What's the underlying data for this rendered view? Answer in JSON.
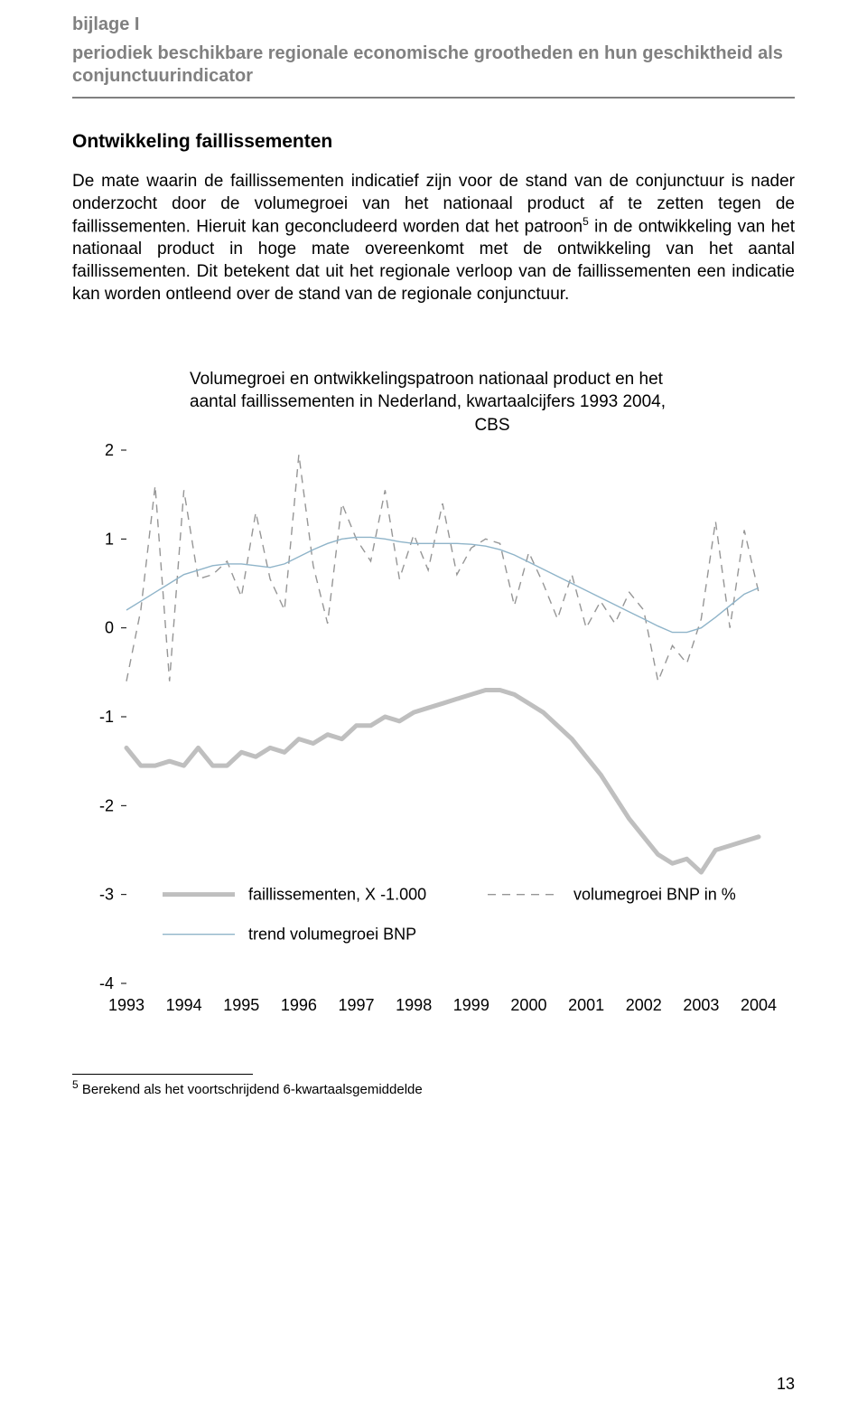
{
  "header": {
    "appendix_label": "bijlage I",
    "appendix_subtitle": "periodiek beschikbare regionale economische grootheden en hun geschiktheid als conjunctuurindicator"
  },
  "section": {
    "heading": "Ontwikkeling faillissementen",
    "paragraph_pre_sup": "De mate waarin de faillissementen indicatief zijn voor de stand van de conjunctuur is nader onderzocht door de volumegroei van het nationaal product af te zetten tegen de faillissementen. Hieruit kan geconcludeerd worden dat het patroon",
    "sup": "5",
    "paragraph_post_sup": " in de ontwikkeling van het nationaal product in hoge mate overeenkomt met de ontwikkeling van het aantal faillissementen. Dit betekent dat uit het regionale verloop van de faillissementen een indicatie kan worden ontleend over de stand van de regionale conjunctuur."
  },
  "chart": {
    "title_line1": "Volumegroei en ontwikkelingspatroon  nationaal product en het",
    "title_line2": "aantal faillissementen in Nederland, kwartaalcijfers 1993 2004,",
    "title_line3": "CBS",
    "y_ticks": [
      "2",
      "1",
      "0",
      "-1",
      "-2",
      "-3",
      "-4"
    ],
    "y_min": -4,
    "y_max": 2,
    "x_labels": [
      "1993",
      "1994",
      "1995",
      "1996",
      "1997",
      "1998",
      "1999",
      "2000",
      "2001",
      "2002",
      "2003",
      "2004"
    ],
    "x_min": 0,
    "x_max": 44,
    "legend": {
      "faill": "faillissementen, X -1.000",
      "vol": "volumegroei BNP in %",
      "trend": "trend volumegroei BNP"
    },
    "colors": {
      "faill": "#bfbfbf",
      "vol": "#969696",
      "trend": "#8fb4c9",
      "tick_text": "#000000",
      "bg": "#ffffff"
    },
    "line_widths": {
      "faill": 5,
      "vol": 1.4,
      "trend": 1.4
    },
    "series_faill": [
      -1.35,
      -1.55,
      -1.55,
      -1.5,
      -1.55,
      -1.35,
      -1.55,
      -1.55,
      -1.4,
      -1.45,
      -1.35,
      -1.4,
      -1.25,
      -1.3,
      -1.2,
      -1.25,
      -1.1,
      -1.1,
      -1.0,
      -1.05,
      -0.95,
      -0.9,
      -0.85,
      -0.8,
      -0.75,
      -0.7,
      -0.7,
      -0.75,
      -0.85,
      -0.95,
      -1.1,
      -1.25,
      -1.45,
      -1.65,
      -1.9,
      -2.15,
      -2.35,
      -2.55,
      -2.65,
      -2.6,
      -2.75,
      -2.5,
      -2.45,
      -2.4,
      -2.35
    ],
    "series_vol": [
      -0.6,
      0.2,
      1.6,
      -0.6,
      1.55,
      0.55,
      0.6,
      0.75,
      0.35,
      1.3,
      0.55,
      0.2,
      1.95,
      0.7,
      0.05,
      1.4,
      1.0,
      0.75,
      1.55,
      0.55,
      1.05,
      0.65,
      1.4,
      0.6,
      0.9,
      1.0,
      0.95,
      0.25,
      0.85,
      0.5,
      0.1,
      0.6,
      0.0,
      0.3,
      0.05,
      0.4,
      0.2,
      -0.6,
      -0.2,
      -0.4,
      0.1,
      1.2,
      0.0,
      1.1,
      0.4
    ],
    "series_trend": [
      0.2,
      0.3,
      0.4,
      0.5,
      0.6,
      0.65,
      0.7,
      0.72,
      0.72,
      0.7,
      0.68,
      0.72,
      0.8,
      0.88,
      0.95,
      1.0,
      1.02,
      1.02,
      1.0,
      0.97,
      0.95,
      0.95,
      0.95,
      0.95,
      0.94,
      0.92,
      0.88,
      0.82,
      0.74,
      0.66,
      0.58,
      0.5,
      0.42,
      0.34,
      0.26,
      0.18,
      0.1,
      0.02,
      -0.05,
      -0.05,
      0.0,
      0.12,
      0.25,
      0.38,
      0.45
    ]
  },
  "footnote": {
    "num": "5",
    "text": " Berekend als het voortschrijdend 6-kwartaalsgemiddelde"
  },
  "page_number": "13"
}
